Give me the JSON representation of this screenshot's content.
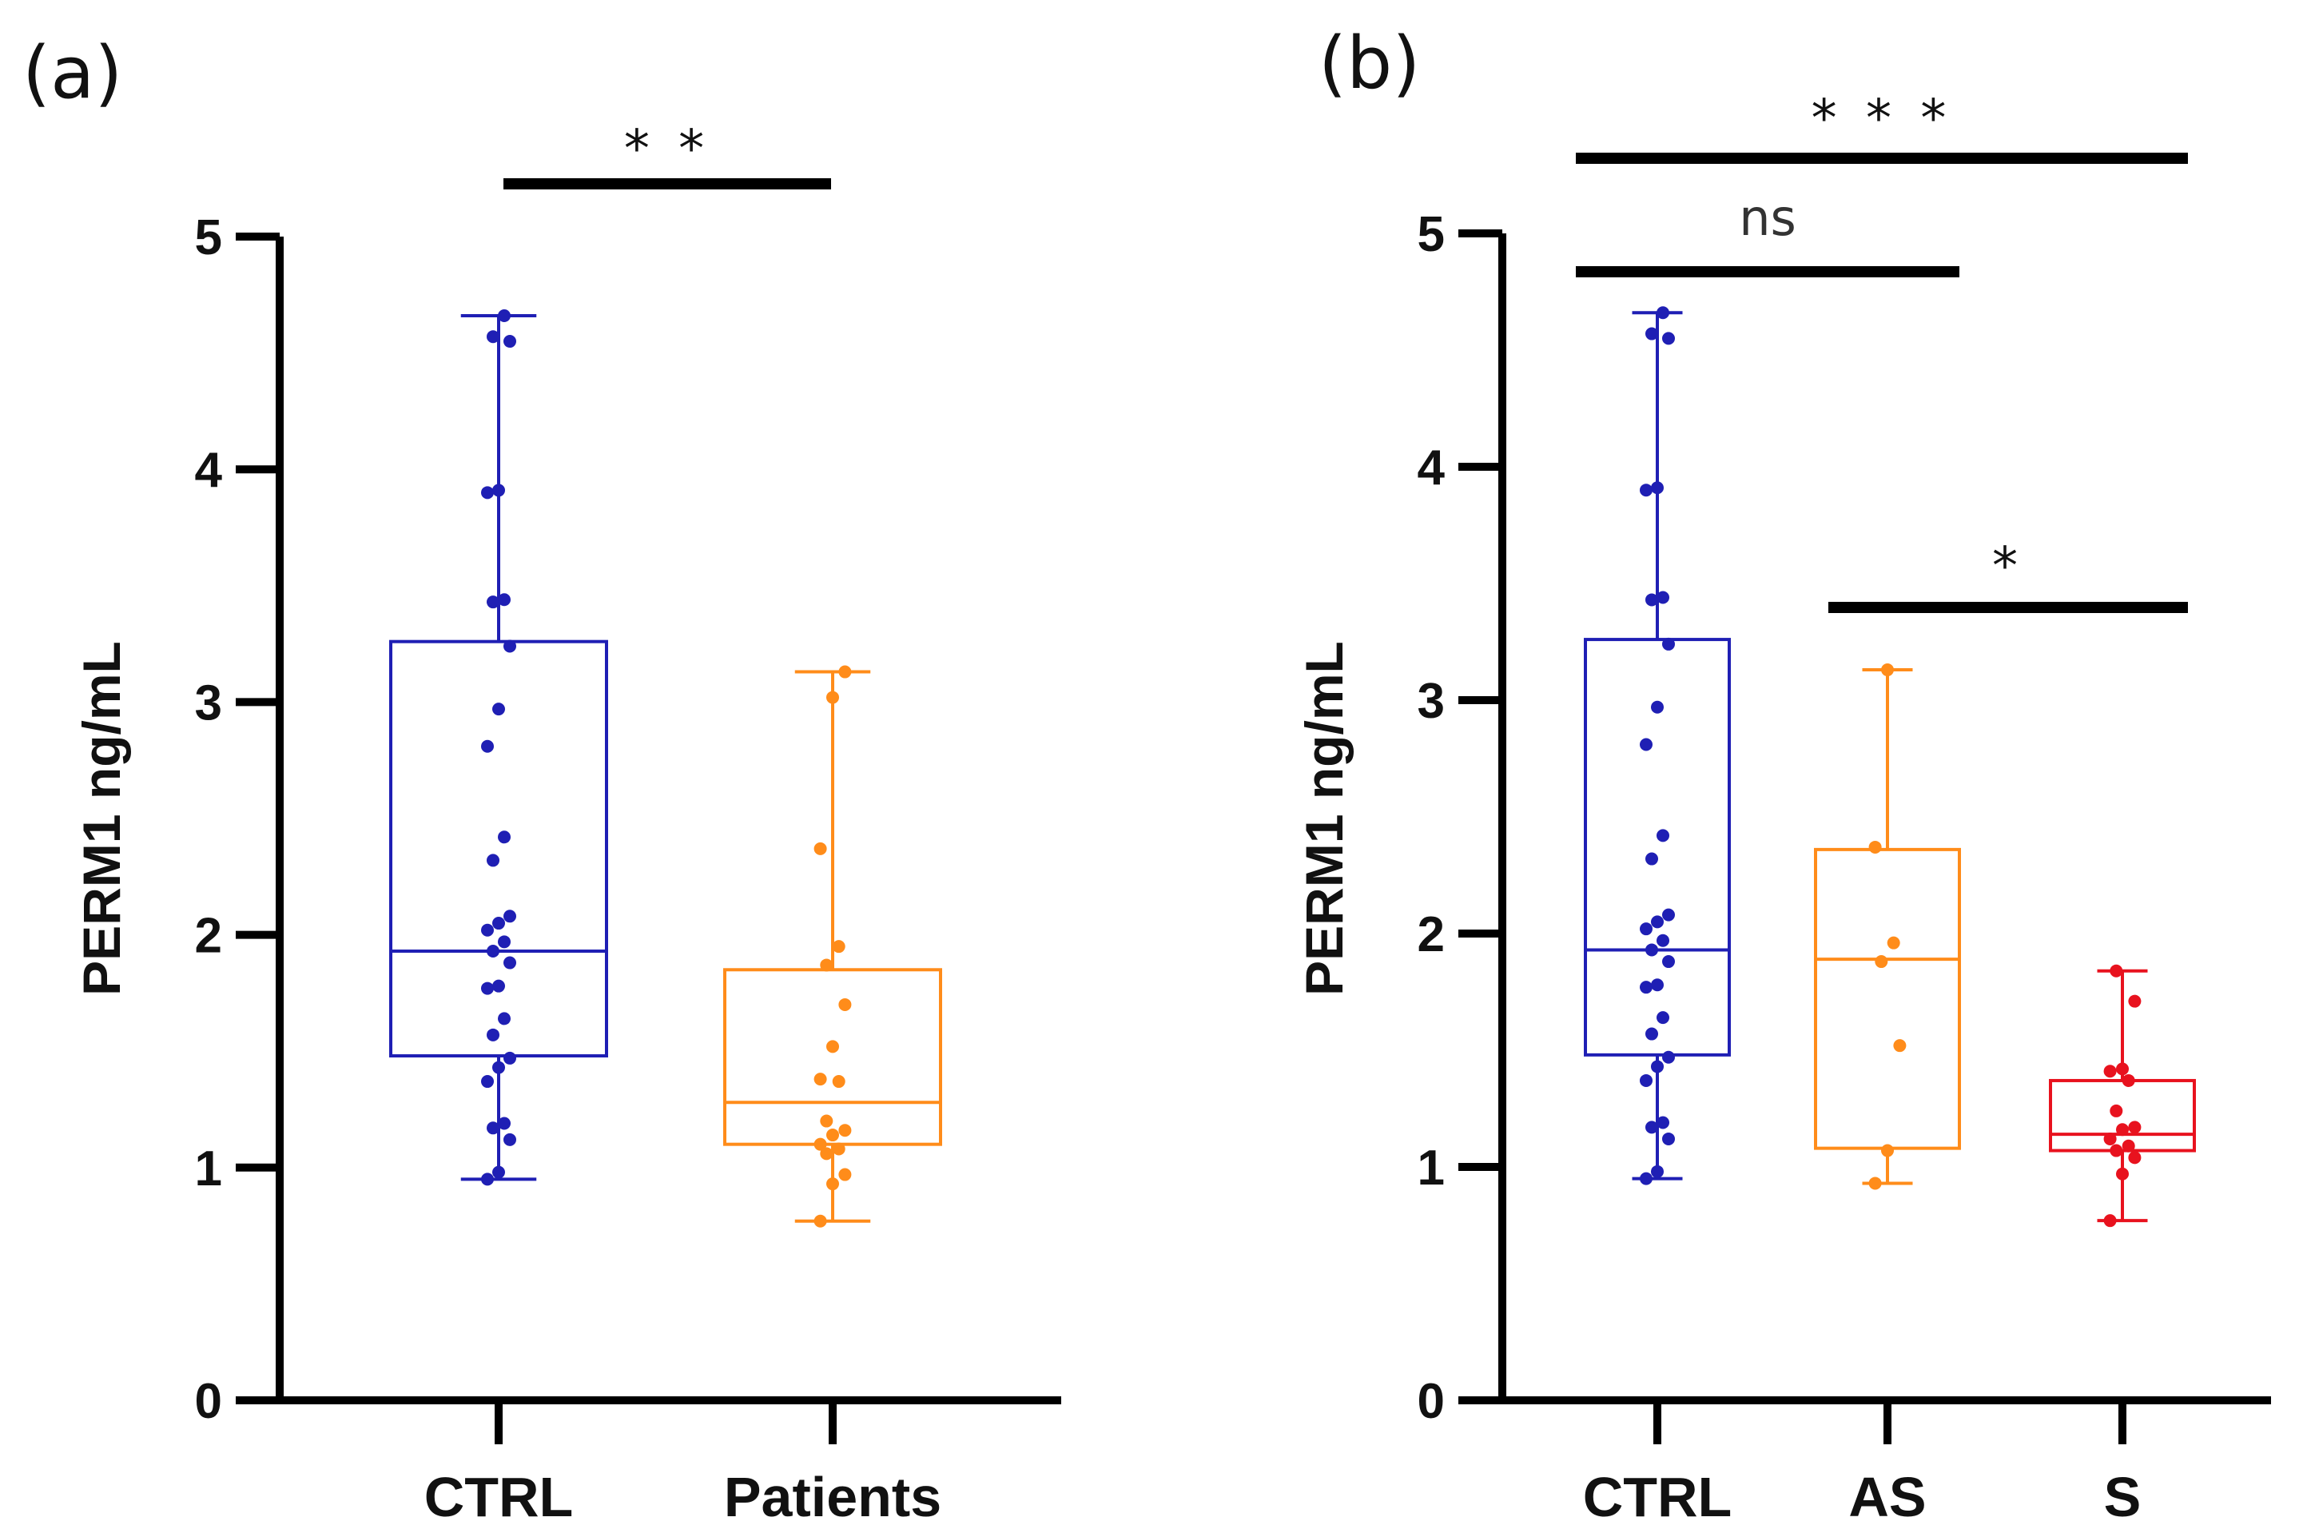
{
  "chart_data": [
    {
      "panel": "(a)",
      "type": "box",
      "ylabel": "PERM1 ng/mL",
      "ylim": [
        0,
        5
      ],
      "yticks": [
        "0",
        "1",
        "2",
        "3",
        "4",
        "5"
      ],
      "groups": [
        {
          "name": "CTRL",
          "color": "#1f1fb4",
          "min": 0.95,
          "q1": 1.48,
          "median": 1.93,
          "q3": 3.26,
          "max": 4.66,
          "points": [
            0.95,
            0.98,
            1.12,
            1.17,
            1.19,
            1.37,
            1.43,
            1.47,
            1.57,
            1.64,
            1.77,
            1.78,
            1.88,
            1.93,
            1.97,
            2.02,
            2.05,
            2.08,
            2.32,
            2.42,
            2.81,
            2.97,
            3.24,
            3.43,
            3.44,
            3.9,
            3.91,
            4.55,
            4.57,
            4.66
          ]
        },
        {
          "name": "Patients",
          "color": "#ff8c1a",
          "min": 0.77,
          "q1": 1.1,
          "median": 1.28,
          "q3": 1.85,
          "max": 3.13,
          "points": [
            0.77,
            0.93,
            0.97,
            1.06,
            1.08,
            1.1,
            1.14,
            1.16,
            1.2,
            1.37,
            1.38,
            1.52,
            1.7,
            1.87,
            1.95,
            2.37,
            3.02,
            3.13
          ]
        }
      ],
      "comparisons": [
        {
          "from": "CTRL",
          "to": "Patients",
          "label": "* *"
        }
      ]
    },
    {
      "panel": "(b)",
      "type": "box",
      "ylabel": "PERM1 ng/mL",
      "ylim": [
        0,
        5
      ],
      "yticks": [
        "0",
        "1",
        "2",
        "3",
        "4",
        "5"
      ],
      "groups": [
        {
          "name": "CTRL",
          "color": "#1f1fb4",
          "min": 0.95,
          "q1": 1.48,
          "median": 1.93,
          "q3": 3.26,
          "max": 4.66,
          "points": [
            0.95,
            0.98,
            1.12,
            1.17,
            1.19,
            1.37,
            1.43,
            1.47,
            1.57,
            1.64,
            1.77,
            1.78,
            1.88,
            1.93,
            1.97,
            2.02,
            2.05,
            2.08,
            2.32,
            2.42,
            2.81,
            2.97,
            3.24,
            3.43,
            3.44,
            3.9,
            3.91,
            4.55,
            4.57,
            4.66
          ]
        },
        {
          "name": "AS",
          "color": "#ff8c1a",
          "min": 0.93,
          "q1": 1.08,
          "median": 1.89,
          "q3": 2.36,
          "max": 3.13,
          "points": [
            0.93,
            1.07,
            1.52,
            1.88,
            1.96,
            2.37,
            3.13
          ]
        },
        {
          "name": "S",
          "color": "#e8121e",
          "min": 0.77,
          "q1": 1.07,
          "median": 1.14,
          "q3": 1.37,
          "max": 1.84,
          "points": [
            0.77,
            0.97,
            1.04,
            1.07,
            1.09,
            1.12,
            1.16,
            1.17,
            1.24,
            1.37,
            1.41,
            1.42,
            1.71,
            1.84
          ]
        }
      ],
      "comparisons": [
        {
          "from": "CTRL",
          "to": "S",
          "label": "* * *"
        },
        {
          "from": "CTRL",
          "to": "AS",
          "label": "ns"
        },
        {
          "from": "AS",
          "to": "S",
          "label": "*"
        }
      ]
    }
  ]
}
